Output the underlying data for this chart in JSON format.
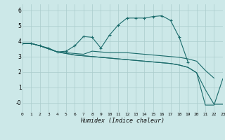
{
  "title": "",
  "xlabel": "Humidex (Indice chaleur)",
  "bg_color": "#cce8e8",
  "grid_color": "#aacccc",
  "line_color": "#1a6b6b",
  "xlim": [
    0,
    23
  ],
  "ylim": [
    -0.6,
    6.4
  ],
  "yticks": [
    0,
    1,
    2,
    3,
    4,
    5,
    6
  ],
  "ytick_labels": [
    "-0",
    "1",
    "2",
    "3",
    "4",
    "5",
    "6"
  ],
  "xticks": [
    0,
    1,
    2,
    3,
    4,
    5,
    6,
    7,
    8,
    9,
    10,
    11,
    12,
    13,
    14,
    15,
    16,
    17,
    18,
    19,
    20,
    21,
    22,
    23
  ],
  "lines": [
    {
      "x": [
        0,
        1,
        2,
        3,
        4,
        5,
        6,
        7,
        8,
        9,
        10,
        11,
        12,
        13,
        14,
        15,
        16,
        17,
        18,
        19
      ],
      "y": [
        3.85,
        3.85,
        3.7,
        3.55,
        3.3,
        3.35,
        3.7,
        4.3,
        4.25,
        3.55,
        4.4,
        5.05,
        5.5,
        5.5,
        5.5,
        5.6,
        5.65,
        5.35,
        4.25,
        2.65
      ],
      "marker": "+"
    },
    {
      "x": [
        0,
        1,
        2,
        3,
        4,
        5,
        6,
        7,
        8,
        9,
        10,
        11,
        12,
        13,
        14,
        15,
        16,
        17,
        18,
        19,
        20,
        21,
        22
      ],
      "y": [
        3.85,
        3.85,
        3.7,
        3.5,
        3.3,
        3.25,
        3.2,
        3.15,
        3.35,
        3.3,
        3.25,
        3.25,
        3.25,
        3.2,
        3.15,
        3.1,
        3.05,
        3.0,
        2.95,
        2.85,
        2.7,
        2.1,
        1.6
      ],
      "marker": null
    },
    {
      "x": [
        0,
        1,
        2,
        3,
        4,
        5,
        6,
        7,
        8,
        9,
        10,
        11,
        12,
        13,
        14,
        15,
        16,
        17,
        18,
        19,
        20,
        21,
        22,
        23
      ],
      "y": [
        3.85,
        3.85,
        3.7,
        3.5,
        3.3,
        3.2,
        3.1,
        3.05,
        3.0,
        2.95,
        2.9,
        2.85,
        2.8,
        2.75,
        2.7,
        2.65,
        2.6,
        2.55,
        2.45,
        2.3,
        1.95,
        0.85,
        -0.1,
        -0.1
      ],
      "marker": null
    },
    {
      "x": [
        0,
        1,
        2,
        3,
        4,
        5,
        6,
        7,
        8,
        9,
        10,
        11,
        12,
        13,
        14,
        15,
        16,
        17,
        18,
        19,
        20,
        21,
        22,
        23
      ],
      "y": [
        3.85,
        3.85,
        3.7,
        3.5,
        3.3,
        3.2,
        3.1,
        3.05,
        3.0,
        2.95,
        2.9,
        2.85,
        2.8,
        2.75,
        2.7,
        2.65,
        2.6,
        2.55,
        2.45,
        2.3,
        1.95,
        -0.15,
        -0.15,
        1.55
      ],
      "marker": null
    }
  ]
}
